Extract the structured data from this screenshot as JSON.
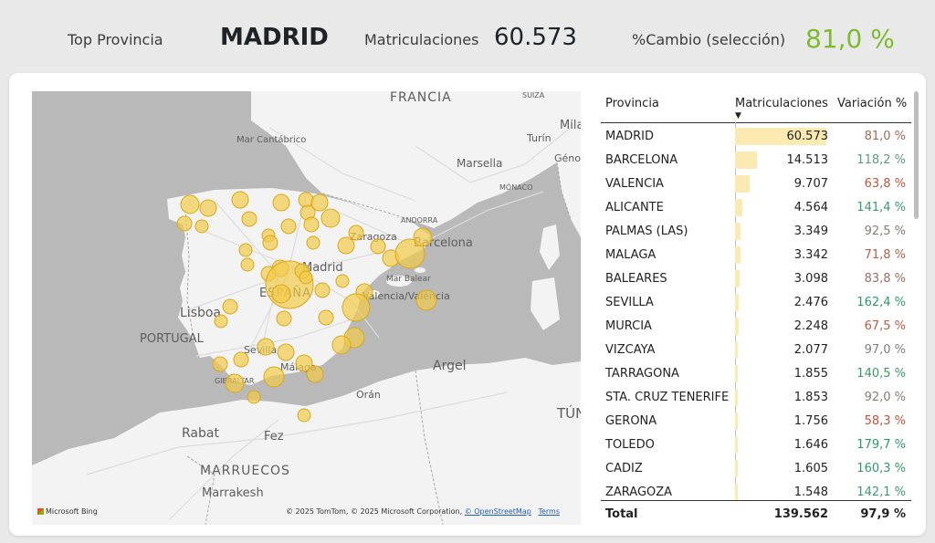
{
  "kpis": {
    "top_label": "Top Provincia",
    "top_value": "MADRID",
    "reg_label": "Matriculaciones",
    "reg_value": "60.573",
    "chg_label": "%Cambio (selección)",
    "chg_value": "81,0 %",
    "chg_color": "#7dbb2e"
  },
  "map": {
    "labels": {
      "francia": "FRANCIA",
      "suiza": "SUIZA",
      "mila": "Mila",
      "cantabrico": "Mar Cantábrico",
      "turin": "Turín",
      "genova": "Génova",
      "marsella": "Marsella",
      "monaco": "MÓNACO",
      "andorra": "ANDORRA",
      "zaragoza": "Zaragoza",
      "barcelona": "Barcelona",
      "madrid": "Madrid",
      "espana": "ESPAÑA",
      "balear": "Mar Balear",
      "valencia": "Valencia/València",
      "lisboa": "Lisboa",
      "portugal": "PORTUGAL",
      "sevilla": "Sevilla",
      "malaga": "Málaga",
      "gibraltar": "GIBRALTAR",
      "argel": "Argel",
      "oran": "Orán",
      "tunez": "TÚN",
      "rabat": "Rabat",
      "fez": "Fez",
      "marruecos": "MARRUECOS",
      "marrakesh": "Marrakesh"
    },
    "bubble_color": "#f2cb4a",
    "bing": "Microsoft Bing",
    "attribution": "© 2025 TomTom, © 2025 Microsoft Corporation,",
    "osm": "© OpenStreetMap",
    "terms": "Terms"
  },
  "table": {
    "col_province": "Provincia",
    "col_registrations": "Matriculaciones",
    "col_change": "Variación %",
    "sort_indicator": "▼",
    "rows": [
      {
        "province": "MADRID",
        "registrations": "60.573",
        "change": "81,0 %",
        "value": 60573,
        "change_color": "#a06a5b"
      },
      {
        "province": "BARCELONA",
        "registrations": "14.513",
        "change": "118,2 %",
        "value": 14513,
        "change_color": "#5c9a7f"
      },
      {
        "province": "VALENCIA",
        "registrations": "9.707",
        "change": "63,8 %",
        "value": 9707,
        "change_color": "#c0573f"
      },
      {
        "province": "ALICANTE",
        "registrations": "4.564",
        "change": "141,4 %",
        "value": 4564,
        "change_color": "#3c9a6d"
      },
      {
        "province": "PALMAS (LAS)",
        "registrations": "3.349",
        "change": "92,5 %",
        "value": 3349,
        "change_color": "#8a7a74"
      },
      {
        "province": "MALAGA",
        "registrations": "3.342",
        "change": "71,8 %",
        "value": 3342,
        "change_color": "#b0604a"
      },
      {
        "province": "BALEARES",
        "registrations": "3.098",
        "change": "83,8 %",
        "value": 3098,
        "change_color": "#9b6e62"
      },
      {
        "province": "SEVILLA",
        "registrations": "2.476",
        "change": "162,4 %",
        "value": 2476,
        "change_color": "#2f9a69"
      },
      {
        "province": "MURCIA",
        "registrations": "2.248",
        "change": "67,5 %",
        "value": 2248,
        "change_color": "#bb5a44"
      },
      {
        "province": "VIZCAYA",
        "registrations": "2.077",
        "change": "97,0 %",
        "value": 2077,
        "change_color": "#7f7f7f"
      },
      {
        "province": "TARRAGONA",
        "registrations": "1.855",
        "change": "140,5 %",
        "value": 1855,
        "change_color": "#3c9a6d"
      },
      {
        "province": "STA. CRUZ TENERIFE",
        "registrations": "1.853",
        "change": "92,0 %",
        "value": 1853,
        "change_color": "#8a7a74"
      },
      {
        "province": "GERONA",
        "registrations": "1.756",
        "change": "58,3 %",
        "value": 1756,
        "change_color": "#c8513a"
      },
      {
        "province": "TOLEDO",
        "registrations": "1.646",
        "change": "179,7 %",
        "value": 1646,
        "change_color": "#2a9966"
      },
      {
        "province": "CADIZ",
        "registrations": "1.605",
        "change": "160,3 %",
        "value": 1605,
        "change_color": "#2f9a69"
      },
      {
        "province": "ZARAGOZA",
        "registrations": "1.548",
        "change": "142,1 %",
        "value": 1548,
        "change_color": "#3c9a6d"
      }
    ],
    "total_label": "Total",
    "total_registrations": "139.562",
    "total_change": "97,9 %"
  }
}
